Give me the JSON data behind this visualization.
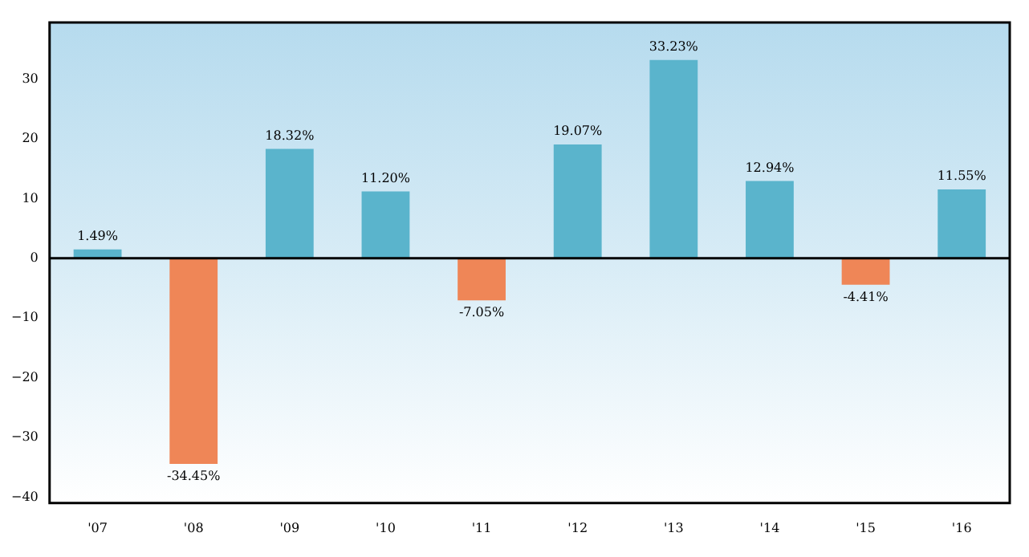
{
  "chart_data": {
    "type": "bar",
    "categories": [
      "'07",
      "'08",
      "'09",
      "'10",
      "'11",
      "'12",
      "'13",
      "'14",
      "'15",
      "'16"
    ],
    "values": [
      1.49,
      -34.45,
      18.32,
      11.2,
      -7.05,
      19.07,
      33.23,
      12.94,
      -4.41,
      11.55
    ],
    "colors": [
      "#5ab4cc",
      "#ef8657",
      "#5ab4cc",
      "#5ab4cc",
      "#ef8657",
      "#5ab4cc",
      "#5ab4cc",
      "#5ab4cc",
      "#ef8657",
      "#5ab4cc"
    ],
    "value_labels": [
      "1.49%",
      "-34.45%",
      "18.32%",
      "11.20%",
      "-7.05%",
      "19.07%",
      "33.23%",
      "12.94%",
      "-4.41%",
      "11.55%"
    ],
    "ylim": [
      -41,
      39.5
    ],
    "yticks": [
      -40,
      -30,
      -20,
      -10,
      0,
      10,
      20,
      30
    ],
    "ref_lines": [
      {
        "axis": "y",
        "value": 0,
        "color": "#000000"
      }
    ],
    "grid": false,
    "legend": false
  }
}
